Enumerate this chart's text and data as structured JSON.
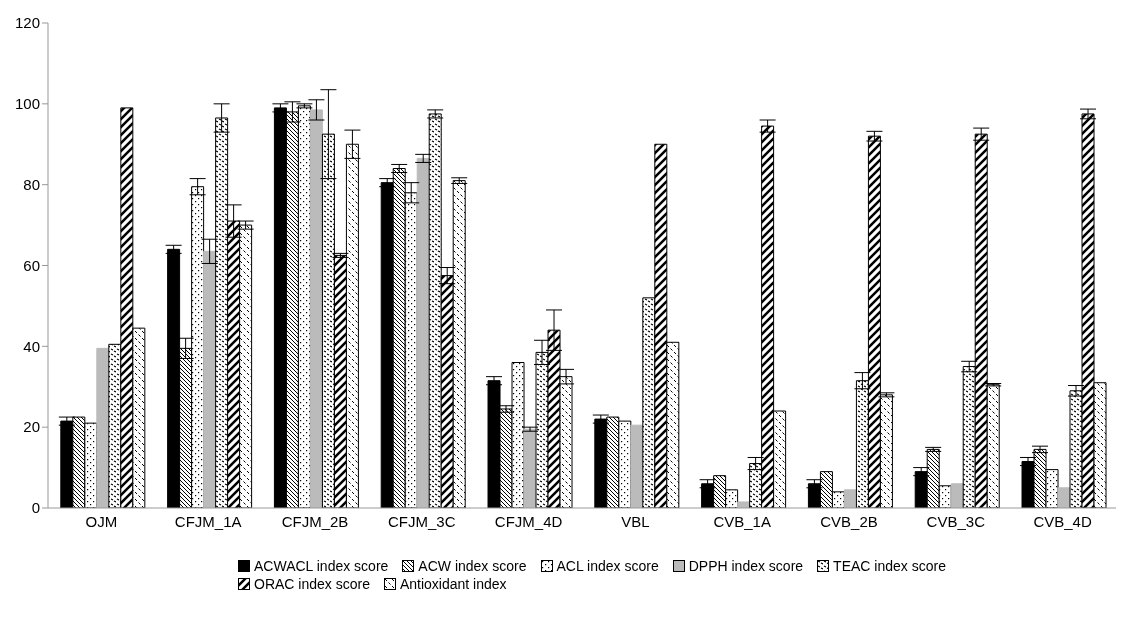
{
  "chart_data": {
    "type": "bar",
    "categories": [
      "OJM",
      "CFJM_1A",
      "CFJM_2B",
      "CFJM_3C",
      "CFJM_4D",
      "VBL",
      "CVB_1A",
      "CVB_2B",
      "CVB_3C",
      "CVB_4D"
    ],
    "series": [
      {
        "name": "ACWACL index score",
        "color": "#000000",
        "values": [
          21.5,
          64,
          99,
          80.5,
          31.5,
          22,
          6,
          6,
          9,
          11.5
        ],
        "errors": [
          1,
          1,
          1,
          1,
          1,
          1,
          1,
          1,
          1,
          1
        ]
      },
      {
        "name": "ACW index score",
        "color": "#000000",
        "values": [
          22.5,
          39.5,
          98,
          84,
          24.5,
          22.5,
          8,
          9,
          14.5,
          14.5
        ],
        "errors": [
          null,
          2.5,
          2.5,
          1,
          0.8,
          null,
          null,
          null,
          0.5,
          0.8
        ]
      },
      {
        "name": "ACL index score",
        "color": "#000000",
        "values": [
          21,
          79.5,
          99.5,
          78,
          36,
          21.5,
          4.5,
          4,
          5.5,
          9.5
        ],
        "errors": [
          null,
          2,
          0.5,
          2.5,
          null,
          null,
          null,
          null,
          null,
          null
        ]
      },
      {
        "name": "DPPH index score",
        "color": "#bbbbbb",
        "values": [
          39.5,
          63.5,
          98.5,
          86.5,
          19.5,
          20.5,
          1.5,
          4.5,
          6,
          5
        ],
        "errors": [
          null,
          3,
          2.5,
          1,
          0.5,
          null,
          null,
          null,
          null,
          null
        ]
      },
      {
        "name": "TEAC index score",
        "color": "#000000",
        "values": [
          40.5,
          96.5,
          92.5,
          97.5,
          38.5,
          52,
          11,
          31.5,
          35,
          29
        ],
        "errors": [
          null,
          3.5,
          11,
          1,
          3,
          null,
          1.5,
          2,
          1.3,
          1.3
        ]
      },
      {
        "name": "ORAC index score",
        "color": "#000000",
        "values": [
          99,
          71,
          62.5,
          57.5,
          44,
          90,
          94.5,
          92,
          92.5,
          97.5
        ],
        "errors": [
          null,
          4,
          0.5,
          2,
          5,
          null,
          1.5,
          1.2,
          1.5,
          1.2
        ]
      },
      {
        "name": "Antioxidant index",
        "color": "#000000",
        "values": [
          44.5,
          70,
          90,
          81,
          32.5,
          41,
          24,
          28,
          30.5,
          31
        ],
        "errors": [
          null,
          1,
          3.5,
          0.7,
          1.8,
          null,
          null,
          0.5,
          0.3,
          null
        ]
      }
    ],
    "ylim": [
      0,
      120
    ],
    "yticks": [
      0,
      20,
      40,
      60,
      80,
      100,
      120
    ],
    "legend": "bottom"
  }
}
